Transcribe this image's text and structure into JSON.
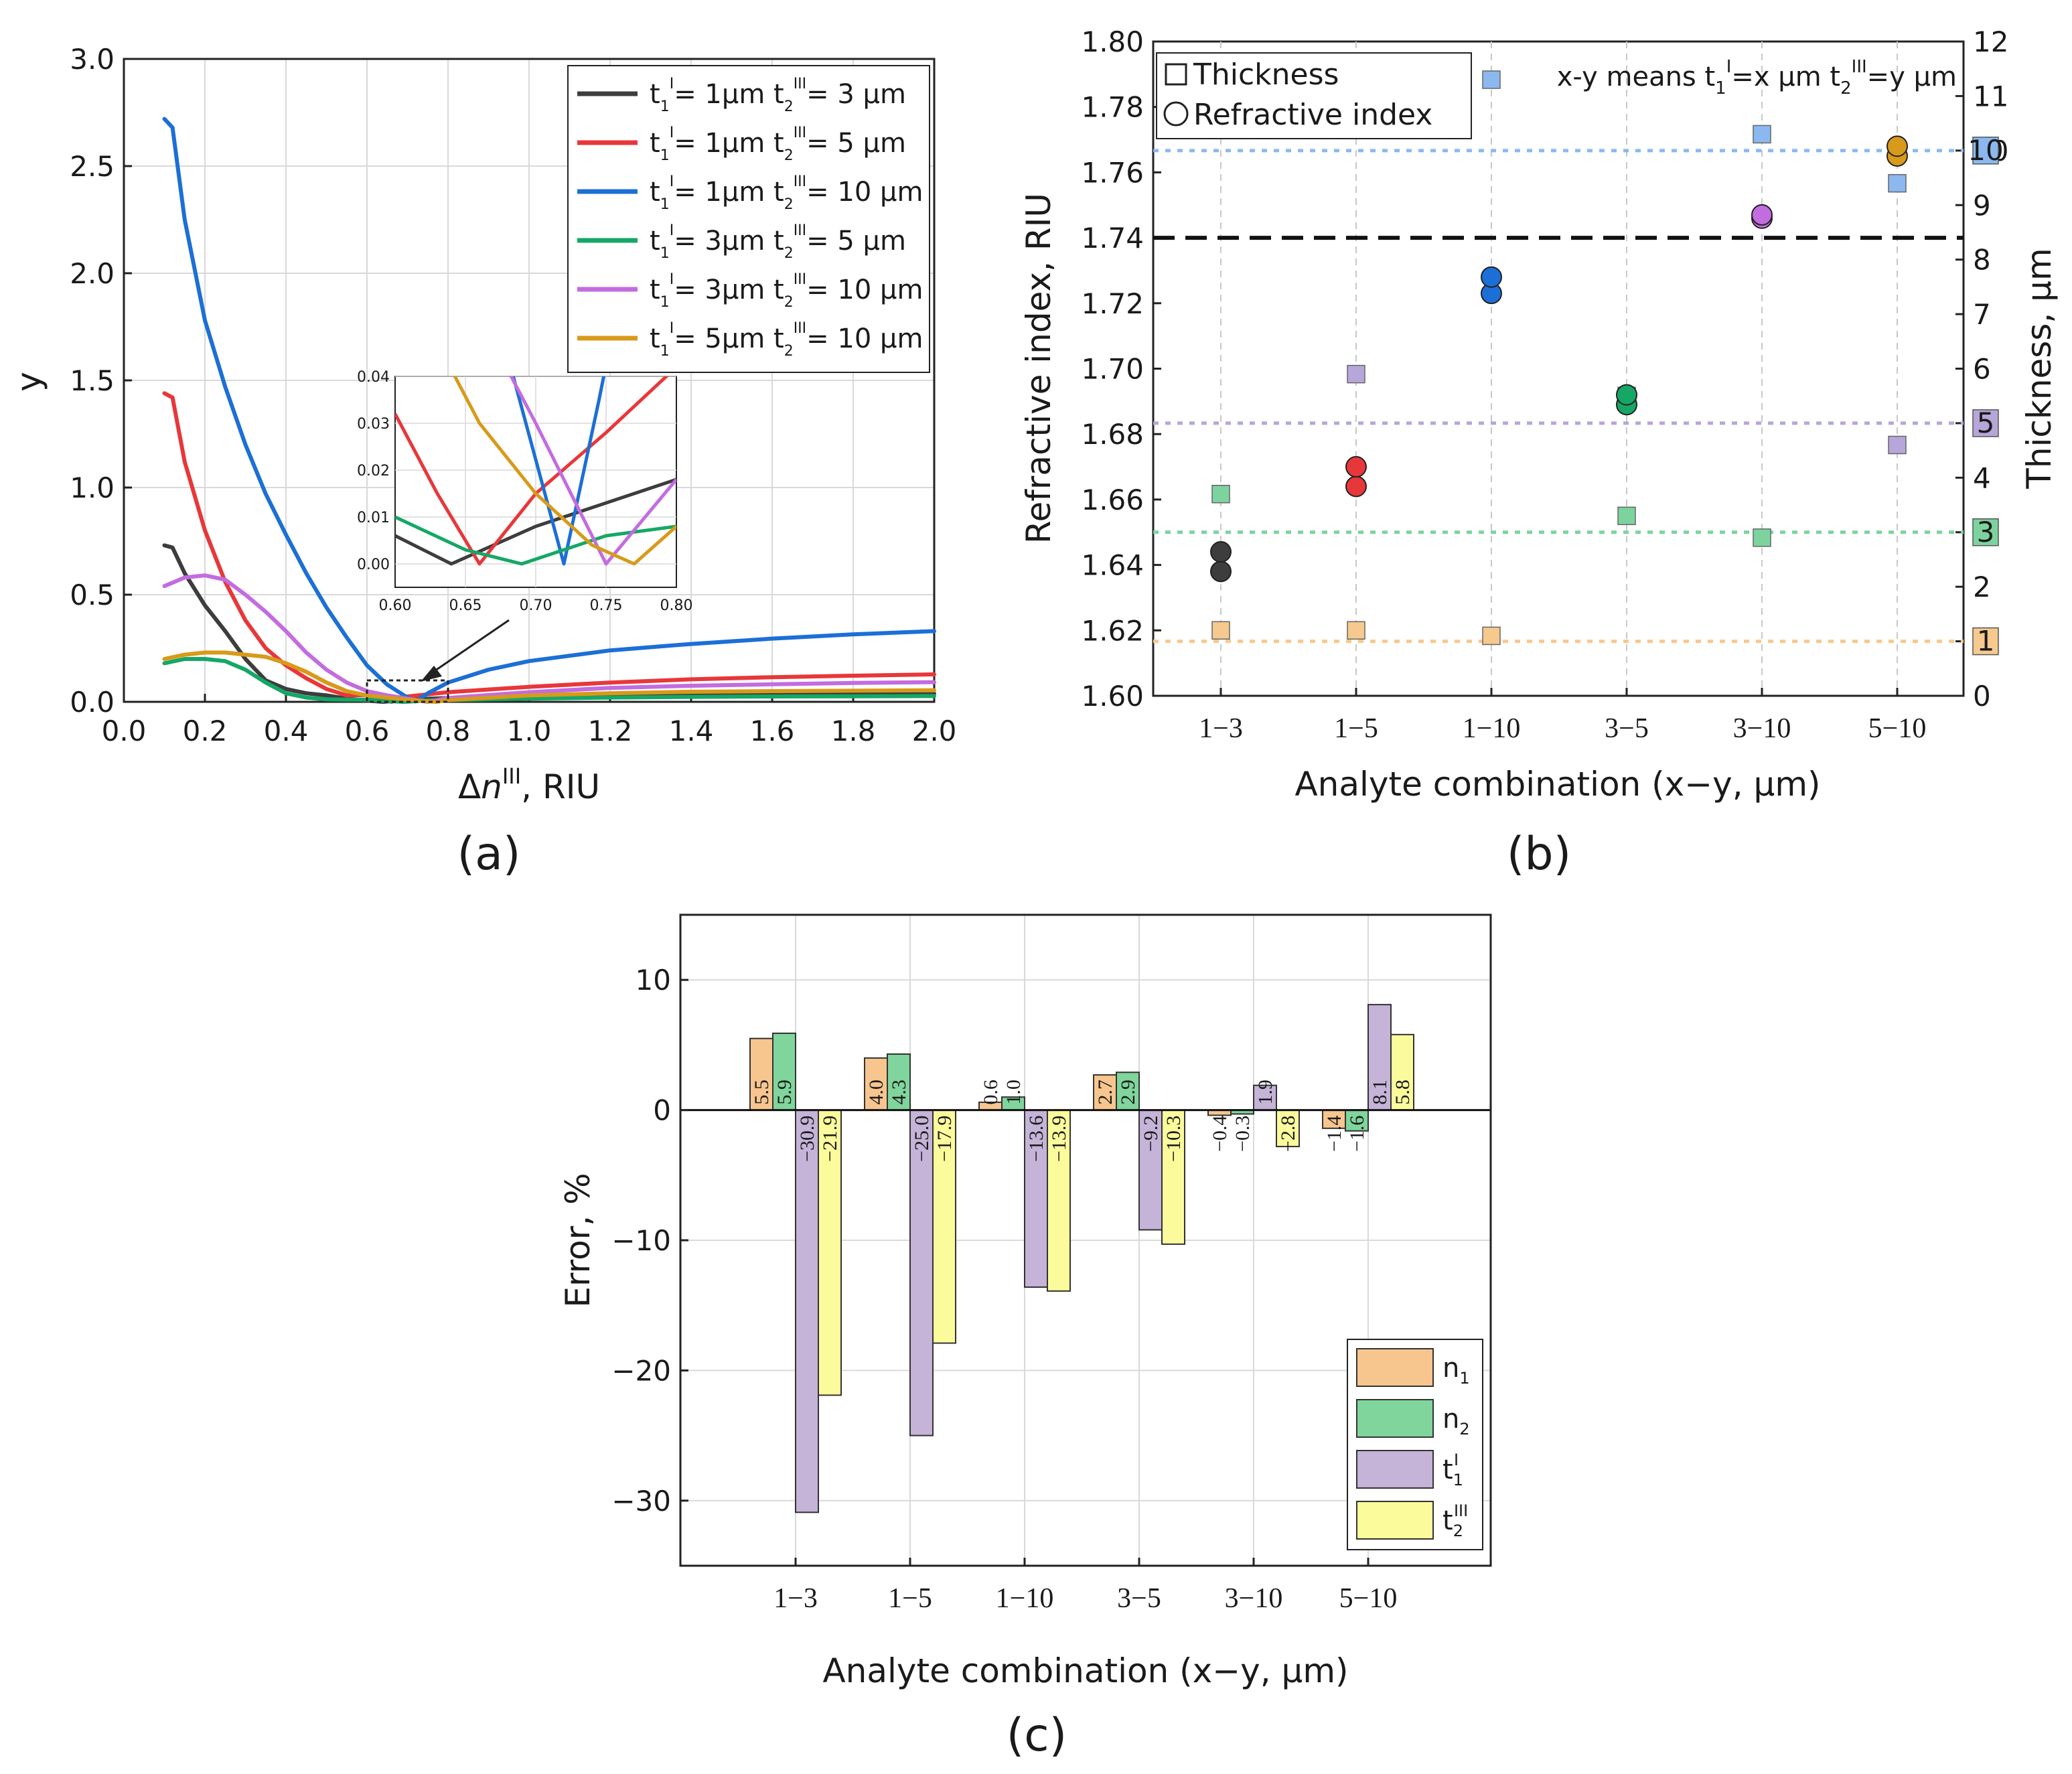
{
  "figure_labels": {
    "a": "(a)",
    "b": "(b)",
    "c": "(c)"
  },
  "chart_data": [
    {
      "id": "a",
      "type": "line",
      "xlabel_prefix": "Δ",
      "xlabel_var": "n",
      "xlabel_sup": "III",
      "xlabel_suffix": ", RIU",
      "ylabel": "y",
      "xlim": [
        0.0,
        2.0
      ],
      "ylim": [
        0.0,
        3.0
      ],
      "xticks": [
        "0.0",
        "0.2",
        "0.4",
        "0.6",
        "0.8",
        "1.0",
        "1.2",
        "1.4",
        "1.6",
        "1.8",
        "2.0"
      ],
      "yticks": [
        "0.0",
        "0.5",
        "1.0",
        "1.5",
        "2.0",
        "2.5",
        "3.0"
      ],
      "grid": true,
      "legend_position": "top-right",
      "series": [
        {
          "t1": "1",
          "t2": "3",
          "color": "#3d3d3d",
          "x": [
            0.1,
            0.12,
            0.15,
            0.2,
            0.25,
            0.3,
            0.35,
            0.4,
            0.45,
            0.5,
            0.55,
            0.6,
            0.64,
            0.7,
            0.8,
            1.0,
            1.2,
            1.4,
            1.6,
            1.8,
            2.0
          ],
          "y": [
            0.73,
            0.72,
            0.6,
            0.45,
            0.33,
            0.2,
            0.1,
            0.06,
            0.04,
            0.03,
            0.015,
            0.006,
            0.0,
            0.01,
            0.018,
            0.025,
            0.03,
            0.033,
            0.035,
            0.037,
            0.038
          ]
        },
        {
          "t1": "1",
          "t2": "5",
          "color": "#e8373a",
          "x": [
            0.1,
            0.12,
            0.15,
            0.2,
            0.25,
            0.3,
            0.35,
            0.4,
            0.45,
            0.5,
            0.55,
            0.6,
            0.63,
            0.66,
            0.7,
            0.8,
            1.0,
            1.2,
            1.4,
            1.6,
            1.8,
            2.0
          ],
          "y": [
            1.44,
            1.42,
            1.12,
            0.8,
            0.56,
            0.38,
            0.25,
            0.17,
            0.11,
            0.06,
            0.03,
            0.032,
            0.015,
            0.0,
            0.025,
            0.045,
            0.07,
            0.09,
            0.105,
            0.115,
            0.122,
            0.128
          ]
        },
        {
          "t1": "1",
          "t2": "10",
          "color": "#1c6fd6",
          "x": [
            0.1,
            0.12,
            0.15,
            0.2,
            0.25,
            0.3,
            0.35,
            0.4,
            0.45,
            0.5,
            0.55,
            0.6,
            0.65,
            0.7,
            0.72,
            0.75,
            0.8,
            0.9,
            1.0,
            1.2,
            1.4,
            1.6,
            1.8,
            2.0
          ],
          "y": [
            2.72,
            2.68,
            2.25,
            1.78,
            1.47,
            1.2,
            0.97,
            0.78,
            0.6,
            0.44,
            0.3,
            0.17,
            0.08,
            0.02,
            0.002,
            0.04,
            0.09,
            0.15,
            0.19,
            0.24,
            0.27,
            0.295,
            0.315,
            0.33
          ]
        },
        {
          "t1": "3",
          "t2": "5",
          "color": "#15a766",
          "x": [
            0.1,
            0.15,
            0.2,
            0.25,
            0.3,
            0.35,
            0.4,
            0.45,
            0.5,
            0.55,
            0.6,
            0.65,
            0.69,
            0.75,
            0.8,
            1.0,
            1.2,
            1.4,
            1.6,
            1.8,
            2.0
          ],
          "y": [
            0.18,
            0.2,
            0.2,
            0.19,
            0.15,
            0.09,
            0.04,
            0.02,
            0.012,
            0.01,
            0.01,
            0.004,
            0.0,
            0.006,
            0.008,
            0.015,
            0.02,
            0.023,
            0.025,
            0.026,
            0.027
          ]
        },
        {
          "t1": "3",
          "t2": "10",
          "color": "#c36ce0",
          "x": [
            0.1,
            0.15,
            0.2,
            0.25,
            0.3,
            0.35,
            0.4,
            0.45,
            0.5,
            0.55,
            0.6,
            0.65,
            0.7,
            0.75,
            0.8,
            1.0,
            1.2,
            1.4,
            1.6,
            1.8,
            2.0
          ],
          "y": [
            0.54,
            0.58,
            0.59,
            0.57,
            0.5,
            0.42,
            0.33,
            0.23,
            0.15,
            0.09,
            0.05,
            0.03,
            0.015,
            0.0,
            0.018,
            0.045,
            0.065,
            0.075,
            0.082,
            0.088,
            0.092
          ]
        },
        {
          "t1": "5",
          "t2": "10",
          "color": "#d89a1a",
          "x": [
            0.1,
            0.15,
            0.2,
            0.25,
            0.3,
            0.35,
            0.4,
            0.45,
            0.5,
            0.55,
            0.6,
            0.65,
            0.7,
            0.74,
            0.77,
            0.8,
            1.0,
            1.2,
            1.4,
            1.6,
            1.8,
            2.0
          ],
          "y": [
            0.2,
            0.22,
            0.23,
            0.23,
            0.22,
            0.21,
            0.18,
            0.14,
            0.09,
            0.05,
            0.03,
            0.02,
            0.01,
            0.004,
            0.0,
            0.008,
            0.03,
            0.04,
            0.047,
            0.05,
            0.052,
            0.054
          ]
        }
      ],
      "inset": {
        "xlim": [
          0.6,
          0.8
        ],
        "ylim": [
          -0.005,
          0.04
        ],
        "xticks": [
          "0.60",
          "0.65",
          "0.70",
          "0.75",
          "0.80"
        ],
        "yticks": [
          "0.00",
          "0.01",
          "0.02",
          "0.03",
          "0.04"
        ]
      }
    },
    {
      "id": "b",
      "type": "scatter",
      "xlabel": "Analyte combination (x−y, μm)",
      "ylabel_left": "Refractive index, RIU",
      "ylabel_right": "Thickness, μm",
      "categories": [
        "1−3",
        "1−5",
        "1−10",
        "3−5",
        "3−10",
        "5−10"
      ],
      "ylim_left": [
        1.6,
        1.8
      ],
      "ylim_right": [
        0,
        12
      ],
      "yticks_left": [
        "1.60",
        "1.62",
        "1.64",
        "1.66",
        "1.68",
        "1.70",
        "1.72",
        "1.74",
        "1.76",
        "1.78",
        "1.80"
      ],
      "yticks_right": [
        "0",
        "1",
        "2",
        "3",
        "4",
        "5",
        "6",
        "7",
        "8",
        "9",
        "10",
        "11",
        "12"
      ],
      "legend": {
        "thickness": "Thickness",
        "refractive_index": "Refractive index"
      },
      "note_prefix": "x-y means t",
      "note_mid": "=x μm t",
      "note_suffix": "=y μm",
      "reference_lines": [
        {
          "axis": "left",
          "value": 1.74,
          "style": "dashed",
          "color": "#111111"
        },
        {
          "axis": "right",
          "value": 10,
          "style": "dotted",
          "color": "#8bb9ef",
          "label": "10"
        },
        {
          "axis": "right",
          "value": 5,
          "style": "dotted",
          "color": "#b7a6d9",
          "label": "5"
        },
        {
          "axis": "right",
          "value": 3,
          "style": "dotted",
          "color": "#7dd39e",
          "label": "3"
        },
        {
          "axis": "right",
          "value": 1,
          "style": "dotted",
          "color": "#f6c98e",
          "label": "1"
        }
      ],
      "refractive_index_points": [
        {
          "cat": 0,
          "n1": 1.638,
          "n2": 1.644,
          "color": "#3d3d3d"
        },
        {
          "cat": 1,
          "n1": 1.664,
          "n2": 1.67,
          "color": "#e8373a"
        },
        {
          "cat": 2,
          "n1": 1.723,
          "n2": 1.728,
          "color": "#1c6fd6"
        },
        {
          "cat": 3,
          "n1": 1.689,
          "n2": 1.692,
          "color": "#15a766"
        },
        {
          "cat": 4,
          "n1": 1.746,
          "n2": 1.747,
          "color": "#c36ce0"
        },
        {
          "cat": 5,
          "n1": 1.765,
          "n2": 1.768,
          "color": "#d89a1a"
        }
      ],
      "thickness_points": [
        {
          "cat": 0,
          "t1": 1.2,
          "t2": 3.7
        },
        {
          "cat": 1,
          "t1": 1.2,
          "t2": 5.9
        },
        {
          "cat": 2,
          "t1": 1.1,
          "t2": 11.3
        },
        {
          "cat": 3,
          "t1": 3.3,
          "t2": 5.5
        },
        {
          "cat": 4,
          "t1": 2.9,
          "t2": 10.3
        },
        {
          "cat": 5,
          "t1": 4.6,
          "t2": 9.4
        }
      ]
    },
    {
      "id": "c",
      "type": "bar",
      "xlabel": "Analyte combination (x−y, μm)",
      "ylabel": "Error, %",
      "categories": [
        "1−3",
        "1−5",
        "1−10",
        "3−5",
        "3−10",
        "5−10"
      ],
      "ylim": [
        -35,
        15
      ],
      "yticks": [
        "10",
        "0",
        "−10",
        "−20",
        "−30"
      ],
      "grid": true,
      "legend_position": "bottom-right",
      "series": [
        {
          "name": "n",
          "sub": "1",
          "sup": "",
          "color": "#f7c58e",
          "values": [
            5.5,
            4.0,
            0.6,
            2.7,
            -0.4,
            -1.4
          ],
          "labels": [
            "5.5",
            "4.0",
            "0.6",
            "2.7",
            "−0.4",
            "−1.4"
          ]
        },
        {
          "name": "n",
          "sub": "2",
          "sup": "",
          "color": "#7fd59b",
          "values": [
            5.9,
            4.3,
            1.0,
            2.9,
            -0.3,
            -1.6
          ],
          "labels": [
            "5.9",
            "4.3",
            "1.0",
            "2.9",
            "−0.3",
            "−1.6"
          ]
        },
        {
          "name": "t",
          "sub": "1",
          "sup": "I",
          "color": "#c5b3d8",
          "values": [
            -30.9,
            -25.0,
            -13.6,
            -9.2,
            1.9,
            8.1
          ],
          "labels": [
            "−30.9",
            "−25.0",
            "−13.6",
            "−9.2",
            "1.9",
            "8.1"
          ]
        },
        {
          "name": "t",
          "sub": "2",
          "sup": "III",
          "color": "#fbfb9c",
          "values": [
            -21.9,
            -17.9,
            -13.9,
            -10.3,
            -2.8,
            5.8
          ],
          "labels": [
            "−21.9",
            "−17.9",
            "−13.9",
            "−10.3",
            "−2.8",
            "5.8"
          ]
        }
      ]
    }
  ]
}
